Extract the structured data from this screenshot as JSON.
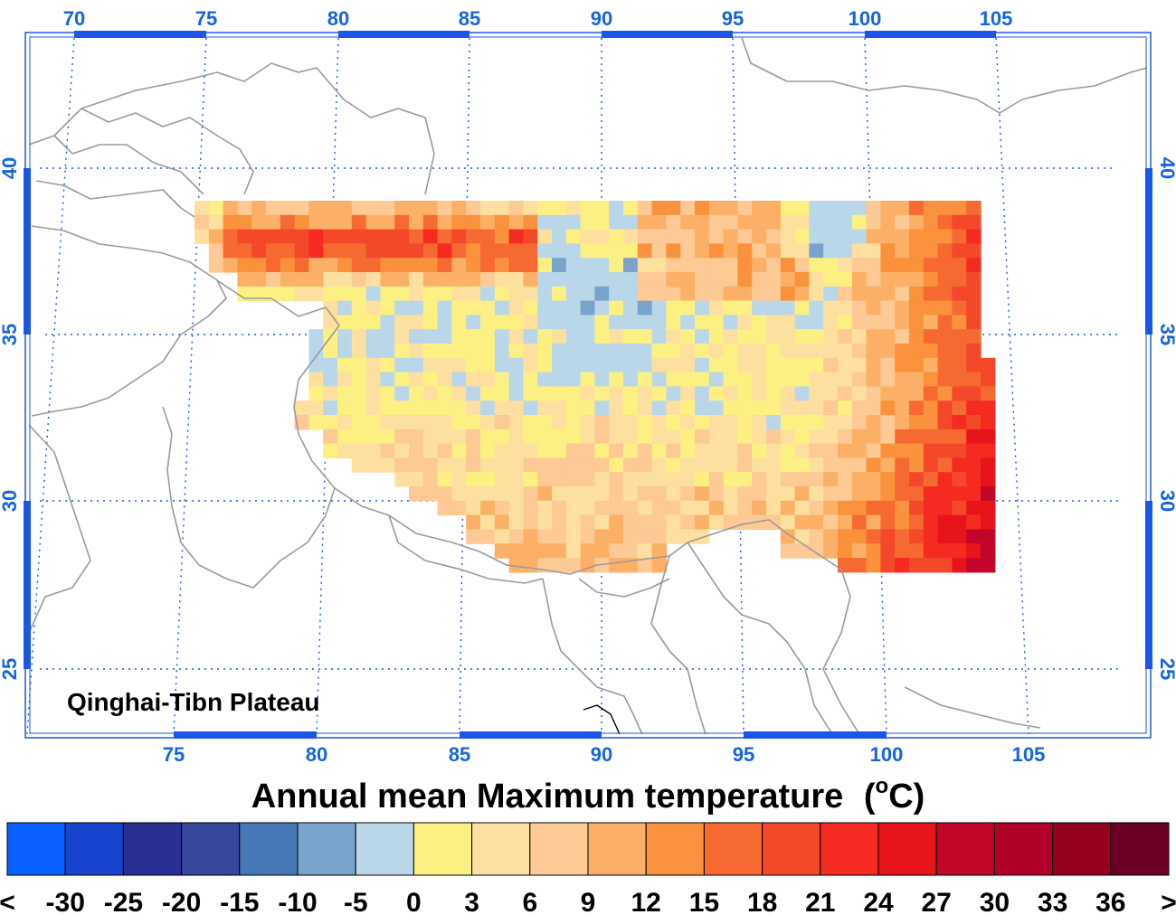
{
  "map": {
    "region_label": "Qinghai-Tibn Plateau",
    "title": "Annual mean Maximum temperature",
    "title_unit_prefix": "(",
    "title_unit_sup": "o",
    "title_unit_suffix": "C)",
    "lon_ticks_top": [
      "70",
      "75",
      "80",
      "85",
      "90",
      "95",
      "100",
      "105"
    ],
    "lon_ticks_bottom": [
      "75",
      "80",
      "85",
      "90",
      "95",
      "100",
      "105"
    ],
    "lat_ticks_left": [
      "40",
      "35",
      "30",
      "25"
    ],
    "lat_ticks_right": [
      "40",
      "35",
      "30",
      "25"
    ],
    "grid_color": "#1a56e8",
    "border_color": "#9a9a9a"
  },
  "colorbar": {
    "labels": [
      "<",
      "-30",
      "-25",
      "-20",
      "-15",
      "-10",
      "-5",
      "0",
      "3",
      "6",
      "9",
      "12",
      "15",
      "18",
      "21",
      "24",
      "27",
      "30",
      "33",
      "36",
      ">"
    ],
    "colors": [
      "#0a60ff",
      "#1744cc",
      "#2a2f94",
      "#36479c",
      "#4677b6",
      "#78a4cc",
      "#b9d7e9",
      "#fdf082",
      "#fde09f",
      "#fdc994",
      "#fcb067",
      "#fa913c",
      "#f66a31",
      "#f4482a",
      "#f52a20",
      "#e8141c",
      "#c4052a",
      "#b00027",
      "#95001f",
      "#6c0024"
    ]
  }
}
